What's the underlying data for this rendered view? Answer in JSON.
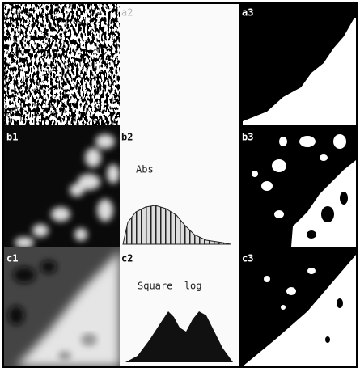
{
  "panels": [
    {
      "label": "a2"
    },
    {
      "label": "a3"
    },
    {
      "label": "b1"
    },
    {
      "label": "b2",
      "caption": "Abs"
    },
    {
      "label": "b3"
    },
    {
      "label": "c1"
    },
    {
      "label": "c2",
      "caption": "Square  log"
    },
    {
      "label": "c3"
    }
  ]
}
